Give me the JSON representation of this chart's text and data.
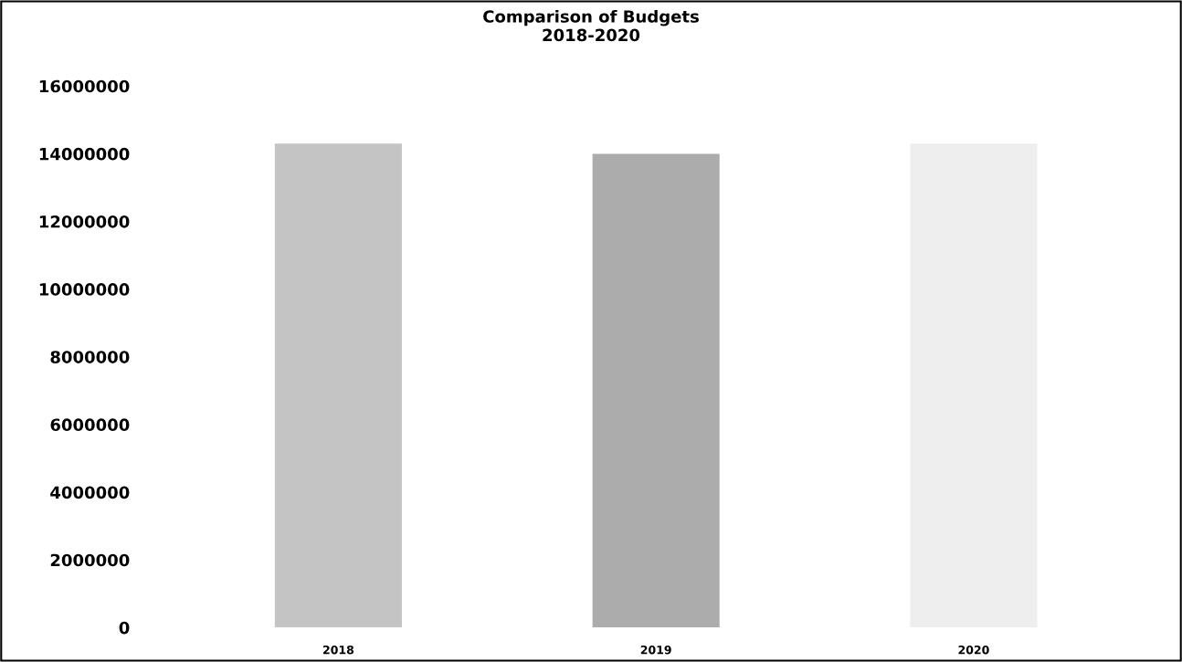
{
  "chart_data": {
    "type": "bar",
    "title": "Comparison of Budgets\n2018-2020",
    "categories": [
      "2018",
      "2019",
      "2020"
    ],
    "values": [
      14300000,
      14000000,
      14300000
    ],
    "colors": [
      "#c4c4c4",
      "#acacac",
      "#eeeeee"
    ],
    "ylim": [
      0,
      16000000
    ],
    "yticks": [
      0,
      2000000,
      4000000,
      6000000,
      8000000,
      10000000,
      12000000,
      14000000,
      16000000
    ],
    "grid": false
  }
}
